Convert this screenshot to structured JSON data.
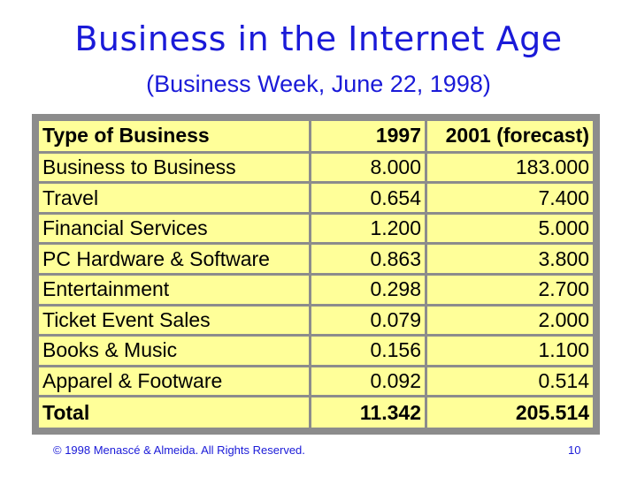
{
  "slide": {
    "title": "Business in the Internet Age",
    "subtitle": "(Business Week, June 22, 1998)"
  },
  "table": {
    "headers": [
      "Type of Business",
      "1997",
      "2001 (forecast)"
    ],
    "rows": [
      [
        "Business to Business",
        "8.000",
        "183.000"
      ],
      [
        "Travel",
        "0.654",
        "7.400"
      ],
      [
        "Financial Services",
        "1.200",
        "5.000"
      ],
      [
        "PC Hardware & Software",
        "0.863",
        "3.800"
      ],
      [
        "Entertainment",
        "0.298",
        "2.700"
      ],
      [
        "Ticket Event Sales",
        "0.079",
        "2.000"
      ],
      [
        "Books & Music",
        "0.156",
        "1.100"
      ],
      [
        "Apparel & Footware",
        "0.092",
        "0.514"
      ]
    ],
    "total": [
      "Total",
      "11.342",
      "205.514"
    ]
  },
  "footer": {
    "copyright": "© 1998 Menascé & Almeida. All Rights Reserved.",
    "page_number": "10"
  },
  "colors": {
    "title": "#1a1ad8",
    "cell_fill": "#ffff99",
    "grid": "#8c8c8c"
  }
}
